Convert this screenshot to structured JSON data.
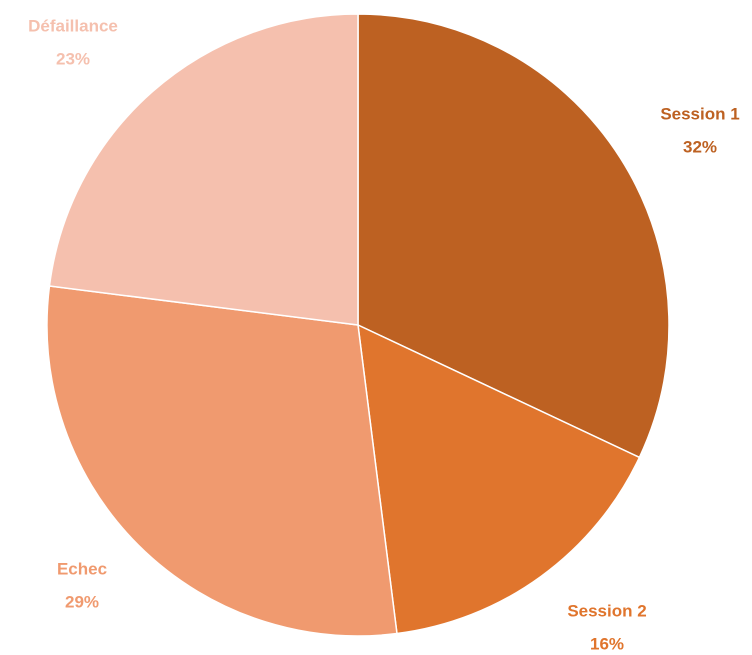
{
  "chart_data": {
    "type": "pie",
    "categories": [
      "Session 1",
      "Session 2",
      "Echec",
      "Défaillance"
    ],
    "values": [
      32,
      16,
      29,
      23
    ],
    "value_labels": [
      "32%",
      "16%",
      "29%",
      "23%"
    ],
    "colors": [
      "#bd6122",
      "#e0752d",
      "#f09a6f",
      "#f5c0ae"
    ]
  }
}
